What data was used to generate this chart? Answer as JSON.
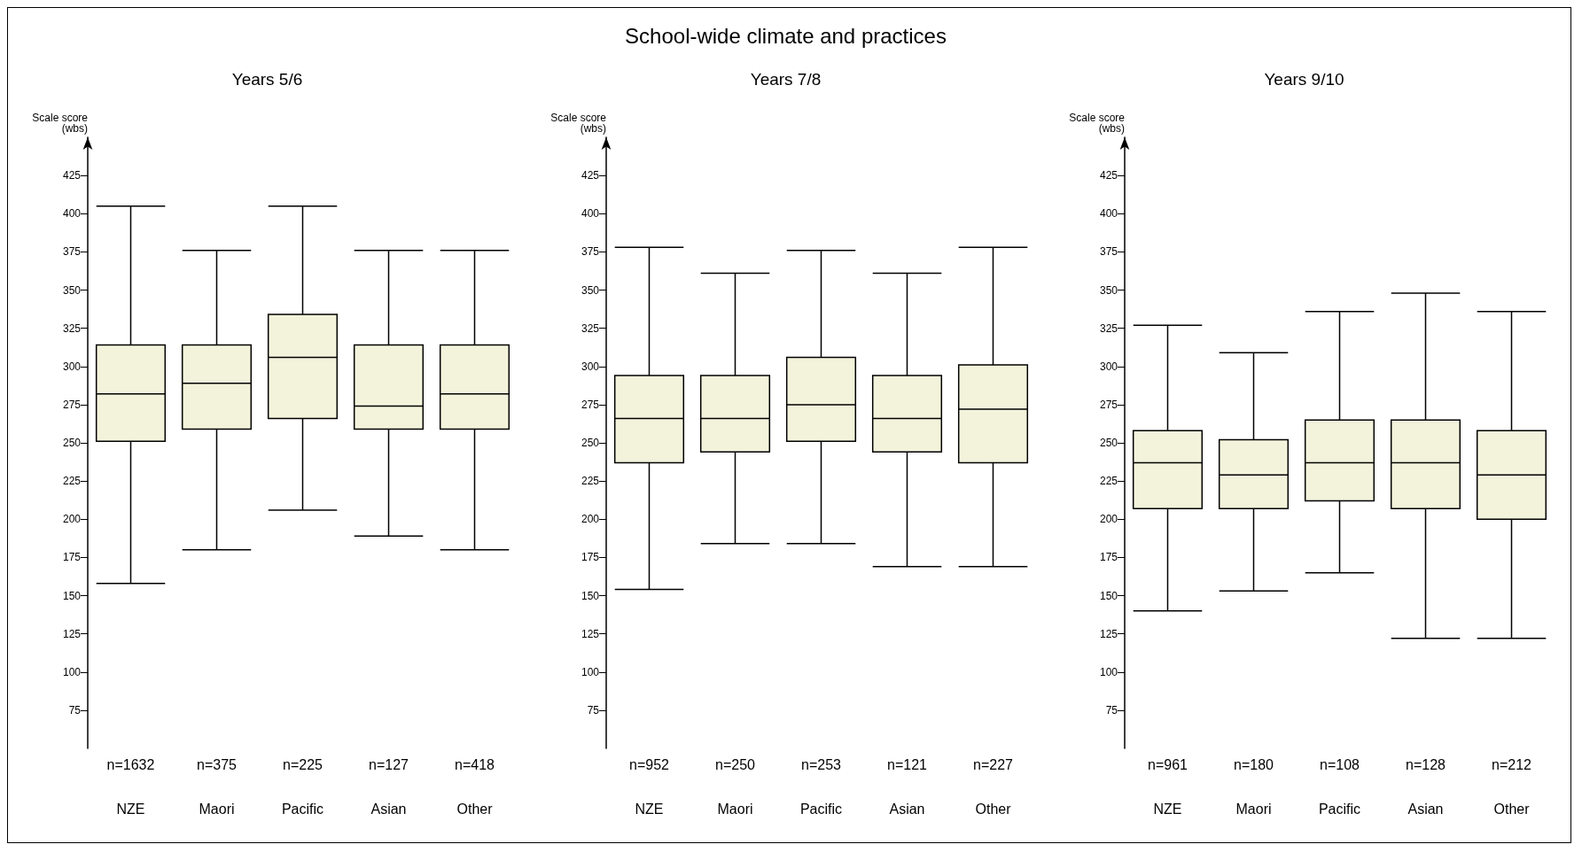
{
  "chart_data": [
    {
      "type": "box",
      "subtitle": "Years 5/6",
      "ylabel": "Scale score\n(wbs)",
      "categories": [
        "NZE",
        "Maori",
        "Pacific",
        "Asian",
        "Other"
      ],
      "color": "#f3f3dc",
      "ylim": [
        50,
        450
      ],
      "yticks": [
        75,
        100,
        125,
        150,
        175,
        200,
        225,
        250,
        275,
        300,
        325,
        350,
        375,
        400,
        425
      ],
      "grid": false,
      "boxes": [
        {
          "low": 158,
          "q1": 251,
          "median": 282,
          "q3": 314,
          "high": 405
        },
        {
          "low": 180,
          "q1": 259,
          "median": 289,
          "q3": 314,
          "high": 376
        },
        {
          "low": 206,
          "q1": 266,
          "median": 306,
          "q3": 334,
          "high": 405
        },
        {
          "low": 189,
          "q1": 259,
          "median": 274,
          "q3": 314,
          "high": 376
        },
        {
          "low": 180,
          "q1": 259,
          "median": 282,
          "q3": 314,
          "high": 376
        }
      ],
      "annotations": [
        "n=1632",
        "n=375",
        "n=225",
        "n=127",
        "n=418"
      ]
    },
    {
      "type": "box",
      "title": "School-wide climate and practices",
      "subtitle": "Years 7/8",
      "ylabel": "Scale score\n(wbs)",
      "categories": [
        "NZE",
        "Maori",
        "Pacific",
        "Asian",
        "Other"
      ],
      "color": "#f3f3dc",
      "ylim": [
        50,
        450
      ],
      "yticks": [
        75,
        100,
        125,
        150,
        175,
        200,
        225,
        250,
        275,
        300,
        325,
        350,
        375,
        400,
        425
      ],
      "grid": false,
      "boxes": [
        {
          "low": 154,
          "q1": 237,
          "median": 266,
          "q3": 294,
          "high": 378
        },
        {
          "low": 184,
          "q1": 244,
          "median": 266,
          "q3": 294,
          "high": 361
        },
        {
          "low": 184,
          "q1": 251,
          "median": 275,
          "q3": 306,
          "high": 376
        },
        {
          "low": 169,
          "q1": 244,
          "median": 266,
          "q3": 294,
          "high": 361
        },
        {
          "low": 169,
          "q1": 237,
          "median": 272,
          "q3": 301,
          "high": 378
        }
      ],
      "annotations": [
        "n=952",
        "n=250",
        "n=253",
        "n=121",
        "n=227"
      ]
    },
    {
      "type": "box",
      "subtitle": "Years 9/10",
      "ylabel": "Scale score\n(wbs)",
      "categories": [
        "NZE",
        "Maori",
        "Pacific",
        "Asian",
        "Other"
      ],
      "color": "#f3f3dc",
      "ylim": [
        50,
        450
      ],
      "yticks": [
        75,
        100,
        125,
        150,
        175,
        200,
        225,
        250,
        275,
        300,
        325,
        350,
        375,
        400,
        425
      ],
      "grid": false,
      "boxes": [
        {
          "low": 140,
          "q1": 207,
          "median": 237,
          "q3": 258,
          "high": 327
        },
        {
          "low": 153,
          "q1": 207,
          "median": 229,
          "q3": 252,
          "high": 309
        },
        {
          "low": 165,
          "q1": 212,
          "median": 237,
          "q3": 265,
          "high": 336
        },
        {
          "low": 122,
          "q1": 207,
          "median": 237,
          "q3": 265,
          "high": 348
        },
        {
          "low": 122,
          "q1": 200,
          "median": 229,
          "q3": 258,
          "high": 336
        }
      ],
      "annotations": [
        "n=961",
        "n=180",
        "n=108",
        "n=128",
        "n=212"
      ]
    }
  ]
}
